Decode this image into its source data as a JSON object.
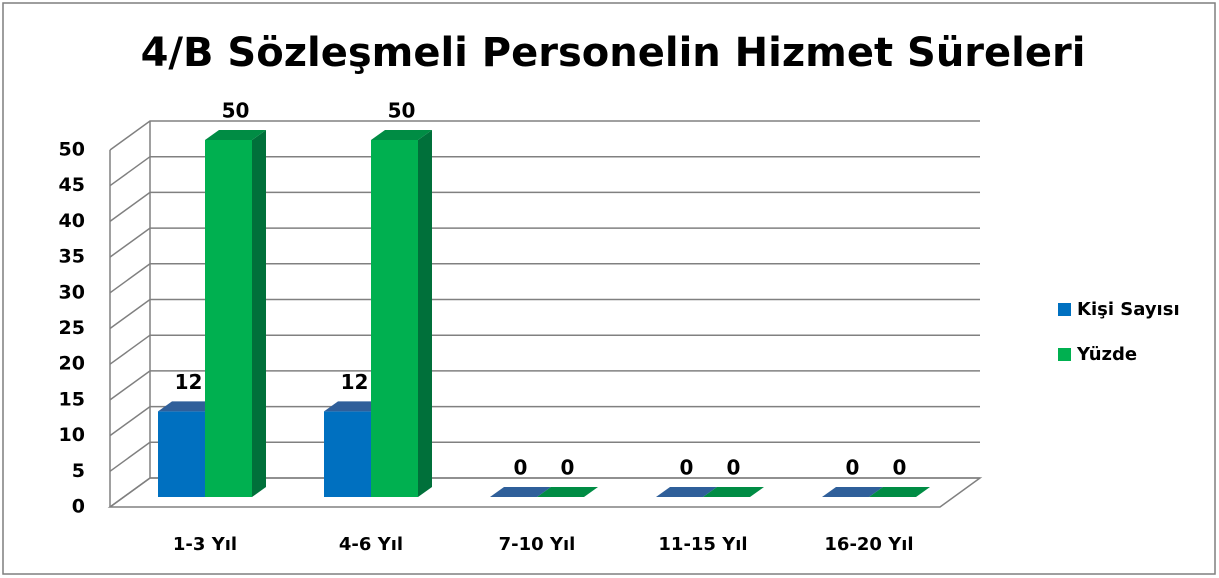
{
  "chart_data": {
    "type": "bar",
    "title": "4/B Sözleşmeli Personelin Hizmet Süreleri",
    "categories": [
      "1-3 Yıl",
      "4-6 Yıl",
      "7-10 Yıl",
      "11-15 Yıl",
      "16-20 Yıl"
    ],
    "series": [
      {
        "name": "Kişi Sayısı",
        "color": "#0070c0",
        "values": [
          12,
          12,
          0,
          0,
          0
        ]
      },
      {
        "name": "Yüzde",
        "color": "#00b050",
        "values": [
          50,
          50,
          0,
          0,
          0
        ]
      }
    ],
    "ylim": [
      0,
      50
    ],
    "yticks": [
      0,
      5,
      10,
      15,
      20,
      25,
      30,
      35,
      40,
      45,
      50
    ],
    "grid": true,
    "legend": "right"
  }
}
